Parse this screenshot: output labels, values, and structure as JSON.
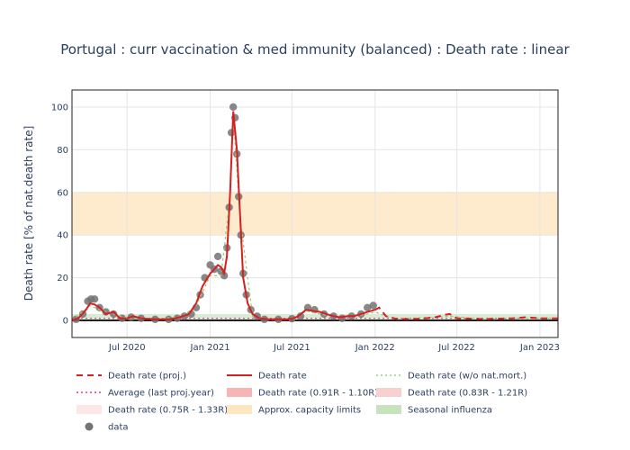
{
  "chart_data": {
    "type": "line",
    "title": "Portugal : curr vaccination & med immunity (balanced) : Death rate : linear",
    "xlabel": "",
    "ylabel": "Death rate [% of nat.death rate]",
    "ylim": [
      -8,
      108
    ],
    "xlim": [
      "2020-03-01",
      "2023-02-10"
    ],
    "x_ticks": [
      {
        "date": "2020-07-01",
        "label": "Jul 2020"
      },
      {
        "date": "2021-01-01",
        "label": "Jan 2021"
      },
      {
        "date": "2021-07-01",
        "label": "Jul 2021"
      },
      {
        "date": "2022-01-01",
        "label": "Jan 2022"
      },
      {
        "date": "2022-07-01",
        "label": "Jul 2022"
      },
      {
        "date": "2023-01-01",
        "label": "Jan 2023"
      }
    ],
    "y_ticks": [
      0,
      20,
      40,
      60,
      80,
      100
    ],
    "grid": true,
    "legend_position": "bottom",
    "bands": [
      {
        "name": "Approx. capacity limits",
        "y0": 40,
        "y1": 60,
        "color": "#fdd9a3"
      },
      {
        "name": "Seasonal influenza",
        "y0": 0,
        "y1": 3,
        "color": "#b7dcae"
      }
    ],
    "average_value": 1,
    "series": [
      {
        "name": "Death rate",
        "color": "#d62020",
        "x": [
          "2020-03-01",
          "2020-03-15",
          "2020-04-01",
          "2020-04-10",
          "2020-04-20",
          "2020-05-01",
          "2020-05-15",
          "2020-06-01",
          "2020-06-15",
          "2020-07-01",
          "2020-07-15",
          "2020-08-01",
          "2020-09-01",
          "2020-10-01",
          "2020-10-15",
          "2020-11-01",
          "2020-11-15",
          "2020-12-01",
          "2020-12-15",
          "2021-01-01",
          "2021-01-10",
          "2021-01-18",
          "2021-01-25",
          "2021-02-01",
          "2021-02-07",
          "2021-02-14",
          "2021-02-21",
          "2021-03-01",
          "2021-03-08",
          "2021-03-15",
          "2021-03-25",
          "2021-04-05",
          "2021-04-20",
          "2021-05-10",
          "2021-06-01",
          "2021-06-20",
          "2021-07-05",
          "2021-07-15",
          "2021-08-01",
          "2021-08-15",
          "2021-09-01",
          "2021-09-15",
          "2021-10-01",
          "2021-10-15",
          "2021-11-01",
          "2021-11-15",
          "2021-12-01",
          "2021-12-15",
          "2022-01-01"
        ],
        "y": [
          0,
          1,
          5,
          8,
          7.5,
          6,
          3,
          4,
          1,
          1,
          2,
          1,
          0.5,
          0.5,
          1,
          2,
          3,
          8,
          16,
          22,
          24,
          26,
          25,
          22,
          30,
          60,
          98,
          80,
          50,
          20,
          8,
          3,
          1,
          0.5,
          0.5,
          0.5,
          1,
          2,
          5,
          4.5,
          4,
          3,
          2,
          1.5,
          2,
          2,
          3,
          4,
          5
        ]
      },
      {
        "name": "Death rate (proj.)",
        "color": "#d62020",
        "x": [
          "2022-01-01",
          "2022-01-10",
          "2022-01-25",
          "2022-02-15",
          "2022-03-15",
          "2022-04-15",
          "2022-05-15",
          "2022-06-01",
          "2022-06-15",
          "2022-07-01",
          "2022-08-01",
          "2022-09-01",
          "2022-10-01",
          "2022-11-01",
          "2022-12-01",
          "2023-01-01",
          "2023-02-10"
        ],
        "y": [
          5,
          6,
          2,
          0.8,
          0.6,
          0.8,
          1.5,
          2.5,
          3,
          1,
          0.8,
          0.6,
          0.8,
          1,
          1.5,
          1,
          1
        ]
      },
      {
        "name": "Death rate (w/o nat.mort.)",
        "color": "#98cf7e",
        "x": [
          "2020-03-01",
          "2020-04-10",
          "2020-05-01",
          "2020-06-01",
          "2020-07-01",
          "2020-09-01",
          "2020-11-01",
          "2020-12-01",
          "2021-01-01",
          "2021-01-25",
          "2021-02-14",
          "2021-02-21",
          "2021-03-08",
          "2021-04-05",
          "2021-05-10",
          "2021-07-05",
          "2021-08-01",
          "2021-09-01",
          "2021-10-15",
          "2021-11-15",
          "2021-12-15",
          "2022-01-01",
          "2022-02-15",
          "2022-06-15",
          "2022-09-01",
          "2022-12-01",
          "2023-02-10"
        ],
        "y": [
          0,
          7,
          5,
          3,
          1,
          0.5,
          2,
          7,
          21,
          21,
          58,
          96,
          48,
          2,
          0.3,
          0.5,
          4.5,
          3,
          1.5,
          2,
          3,
          4,
          0.5,
          2,
          0.5,
          1,
          1
        ]
      },
      {
        "name": "Average (last proj.year)",
        "color": "#e0388a",
        "x": [
          "2020-03-01",
          "2023-02-10"
        ],
        "y": [
          1,
          1
        ]
      },
      {
        "name": "Death rate (0.91R - 1.10R)",
        "color": "#f7b4b4",
        "x": [],
        "y": []
      },
      {
        "name": "Death rate (0.83R - 1.21R)",
        "color": "#f9d0d0",
        "x": [],
        "y": []
      },
      {
        "name": "Death rate (0.75R - 1.33R)",
        "color": "#fce6e6",
        "x": [],
        "y": []
      },
      {
        "name": "data",
        "color": "#737373",
        "x": [
          "2020-03-10",
          "2020-03-25",
          "2020-04-05",
          "2020-04-12",
          "2020-04-20",
          "2020-05-01",
          "2020-05-15",
          "2020-06-01",
          "2020-06-20",
          "2020-07-10",
          "2020-08-01",
          "2020-09-01",
          "2020-10-01",
          "2020-10-20",
          "2020-11-05",
          "2020-11-20",
          "2020-12-01",
          "2020-12-10",
          "2020-12-20",
          "2021-01-01",
          "2021-01-10",
          "2021-01-18",
          "2021-01-25",
          "2021-02-01",
          "2021-02-07",
          "2021-02-12",
          "2021-02-17",
          "2021-02-21",
          "2021-02-25",
          "2021-03-01",
          "2021-03-05",
          "2021-03-10",
          "2021-03-15",
          "2021-03-22",
          "2021-04-01",
          "2021-04-15",
          "2021-05-01",
          "2021-06-01",
          "2021-07-01",
          "2021-07-20",
          "2021-08-05",
          "2021-08-20",
          "2021-09-10",
          "2021-10-01",
          "2021-10-20",
          "2021-11-10",
          "2021-12-01",
          "2021-12-15",
          "2021-12-28"
        ],
        "y": [
          0.5,
          3,
          9,
          10,
          10,
          6,
          4,
          3,
          1,
          1.5,
          1,
          0.5,
          0.5,
          1,
          2,
          3,
          6,
          12,
          20,
          26,
          24,
          30,
          23,
          21,
          34,
          53,
          88,
          100,
          95,
          78,
          58,
          40,
          22,
          12,
          5,
          2,
          0.5,
          0.5,
          0.8,
          2,
          6,
          5,
          3,
          2,
          1,
          2,
          3,
          6,
          7
        ]
      }
    ]
  },
  "legend": [
    {
      "label": "Death rate (proj.)",
      "style": "dash",
      "color": "#d62020"
    },
    {
      "label": "Death rate",
      "style": "solid",
      "color": "#d62020"
    },
    {
      "label": "Death rate (w/o nat.mort.)",
      "style": "dot",
      "color": "#98cf7e"
    },
    {
      "label": "Average (last proj.year)",
      "style": "dot",
      "color": "#e0388a"
    },
    {
      "label": "Death rate (0.91R - 1.10R)",
      "style": "band",
      "color": "#f7b4b4"
    },
    {
      "label": "Death rate (0.83R - 1.21R)",
      "style": "band",
      "color": "#f9d0d0"
    },
    {
      "label": "Death rate (0.75R - 1.33R)",
      "style": "band",
      "color": "#fce6e6"
    },
    {
      "label": "Approx. capacity limits",
      "style": "band",
      "color": "#fde6c0"
    },
    {
      "label": "Seasonal influenza",
      "style": "band",
      "color": "#c6e3bd"
    },
    {
      "label": "data",
      "style": "marker",
      "color": "#737373"
    }
  ]
}
